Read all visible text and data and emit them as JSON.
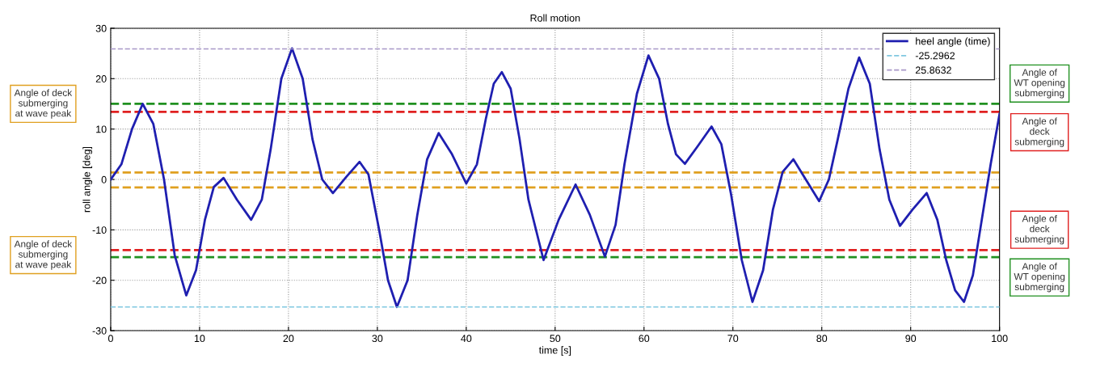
{
  "chart_data": {
    "type": "line",
    "title": "Roll motion",
    "xlabel": "time [s]",
    "ylabel": "roll angle [deg]",
    "xlim": [
      0,
      100
    ],
    "xticks": [
      0,
      10,
      20,
      30,
      40,
      50,
      60,
      70,
      80,
      90,
      100
    ],
    "ylim": [
      -30,
      30
    ],
    "yticks": [
      -30,
      -20,
      -10,
      0,
      10,
      20,
      30
    ],
    "grid": true,
    "legend": "top right",
    "annotations": [
      "Angle of deck\nsubmerging\nat wave peak",
      "Angle of deck\nsubmerging\nat wave peak"
    ],
    "series": [
      {
        "name": "heel angle (time)",
        "color": "#1f1fb0",
        "line_style": "solid",
        "x": [
          0,
          1.2,
          2.4,
          3.6,
          4.8,
          6,
          7.2,
          8.5,
          9.6,
          10.6,
          11.6,
          12.7,
          14.2,
          15.8,
          17,
          18,
          19.2,
          20.4,
          21.6,
          22.7,
          23.8,
          25,
          26.5,
          28,
          29,
          30.2,
          31.2,
          32.2,
          33.4,
          34.5,
          35.6,
          36.9,
          38.4,
          40,
          41.2,
          42.2,
          43.1,
          44,
          45,
          46,
          47,
          48.7,
          50.4,
          52.3,
          53.9,
          55.6,
          56.8,
          57.8,
          59.2,
          60.5,
          61.7,
          62.7,
          63.6,
          64.6,
          66,
          67.6,
          68.7,
          69.8,
          71,
          72.2,
          73.4,
          74.5,
          75.6,
          76.8,
          78.2,
          79.7,
          80.8,
          81.8,
          83,
          84.2,
          85.4,
          86.5,
          87.6,
          88.8,
          90.2,
          91.8,
          93,
          94,
          95,
          96,
          97,
          98,
          99,
          100
        ],
        "values": [
          0,
          3,
          10,
          15,
          11,
          0,
          -15,
          -23,
          -18,
          -8,
          -1.5,
          0.3,
          -4,
          -8,
          -4,
          6,
          20,
          26,
          20,
          8,
          0,
          -2.7,
          0.5,
          3.5,
          1,
          -10,
          -20,
          -25.3,
          -20,
          -7,
          4,
          9.2,
          5,
          -0.8,
          3,
          12,
          19,
          21.3,
          18,
          8,
          -4,
          -16,
          -8,
          -1,
          -7,
          -15.3,
          -9,
          3,
          17,
          24.6,
          20,
          11,
          5,
          3.1,
          6.5,
          10.5,
          7,
          -3,
          -16,
          -24.3,
          -18,
          -6,
          1.5,
          4,
          0,
          -4.3,
          0,
          8,
          18,
          24.2,
          19,
          6,
          -4,
          -9.2,
          -6,
          -2.7,
          -8,
          -16,
          -22,
          -24.3,
          -19,
          -8,
          3,
          13
        ]
      },
      {
        "name": "-25.2962",
        "color": "#80c8e0",
        "line_style": "dashed",
        "x": [
          0,
          100
        ],
        "values": [
          -25.3,
          -25.3
        ]
      },
      {
        "name": "25.8632",
        "color": "#a898c8",
        "line_style": "dashed",
        "x": [
          0,
          100
        ],
        "values": [
          25.9,
          25.9
        ]
      }
    ],
    "ref_lines": [
      {
        "axis": "y",
        "value": 1.4,
        "color": "#e0a020",
        "line_style": "dashed"
      },
      {
        "axis": "y",
        "value": -1.6,
        "color": "#e0a020",
        "line_style": "dashed"
      },
      {
        "axis": "y",
        "value": 15,
        "color": "#209020",
        "line_style": "dashed",
        "label": "Angle of\nWT opening\nsubmerging"
      },
      {
        "axis": "y",
        "value": 13.4,
        "color": "#e02020",
        "line_style": "dashed",
        "label": "Angle of\ndeck\nsubmerging"
      },
      {
        "axis": "y",
        "value": -14,
        "color": "#e02020",
        "line_style": "dashed",
        "label": "Angle of\ndeck\nsubmerging"
      },
      {
        "axis": "y",
        "value": -15.4,
        "color": "#209020",
        "line_style": "dashed",
        "label": "Angle of\nWT opening\nsubmerging"
      }
    ]
  }
}
